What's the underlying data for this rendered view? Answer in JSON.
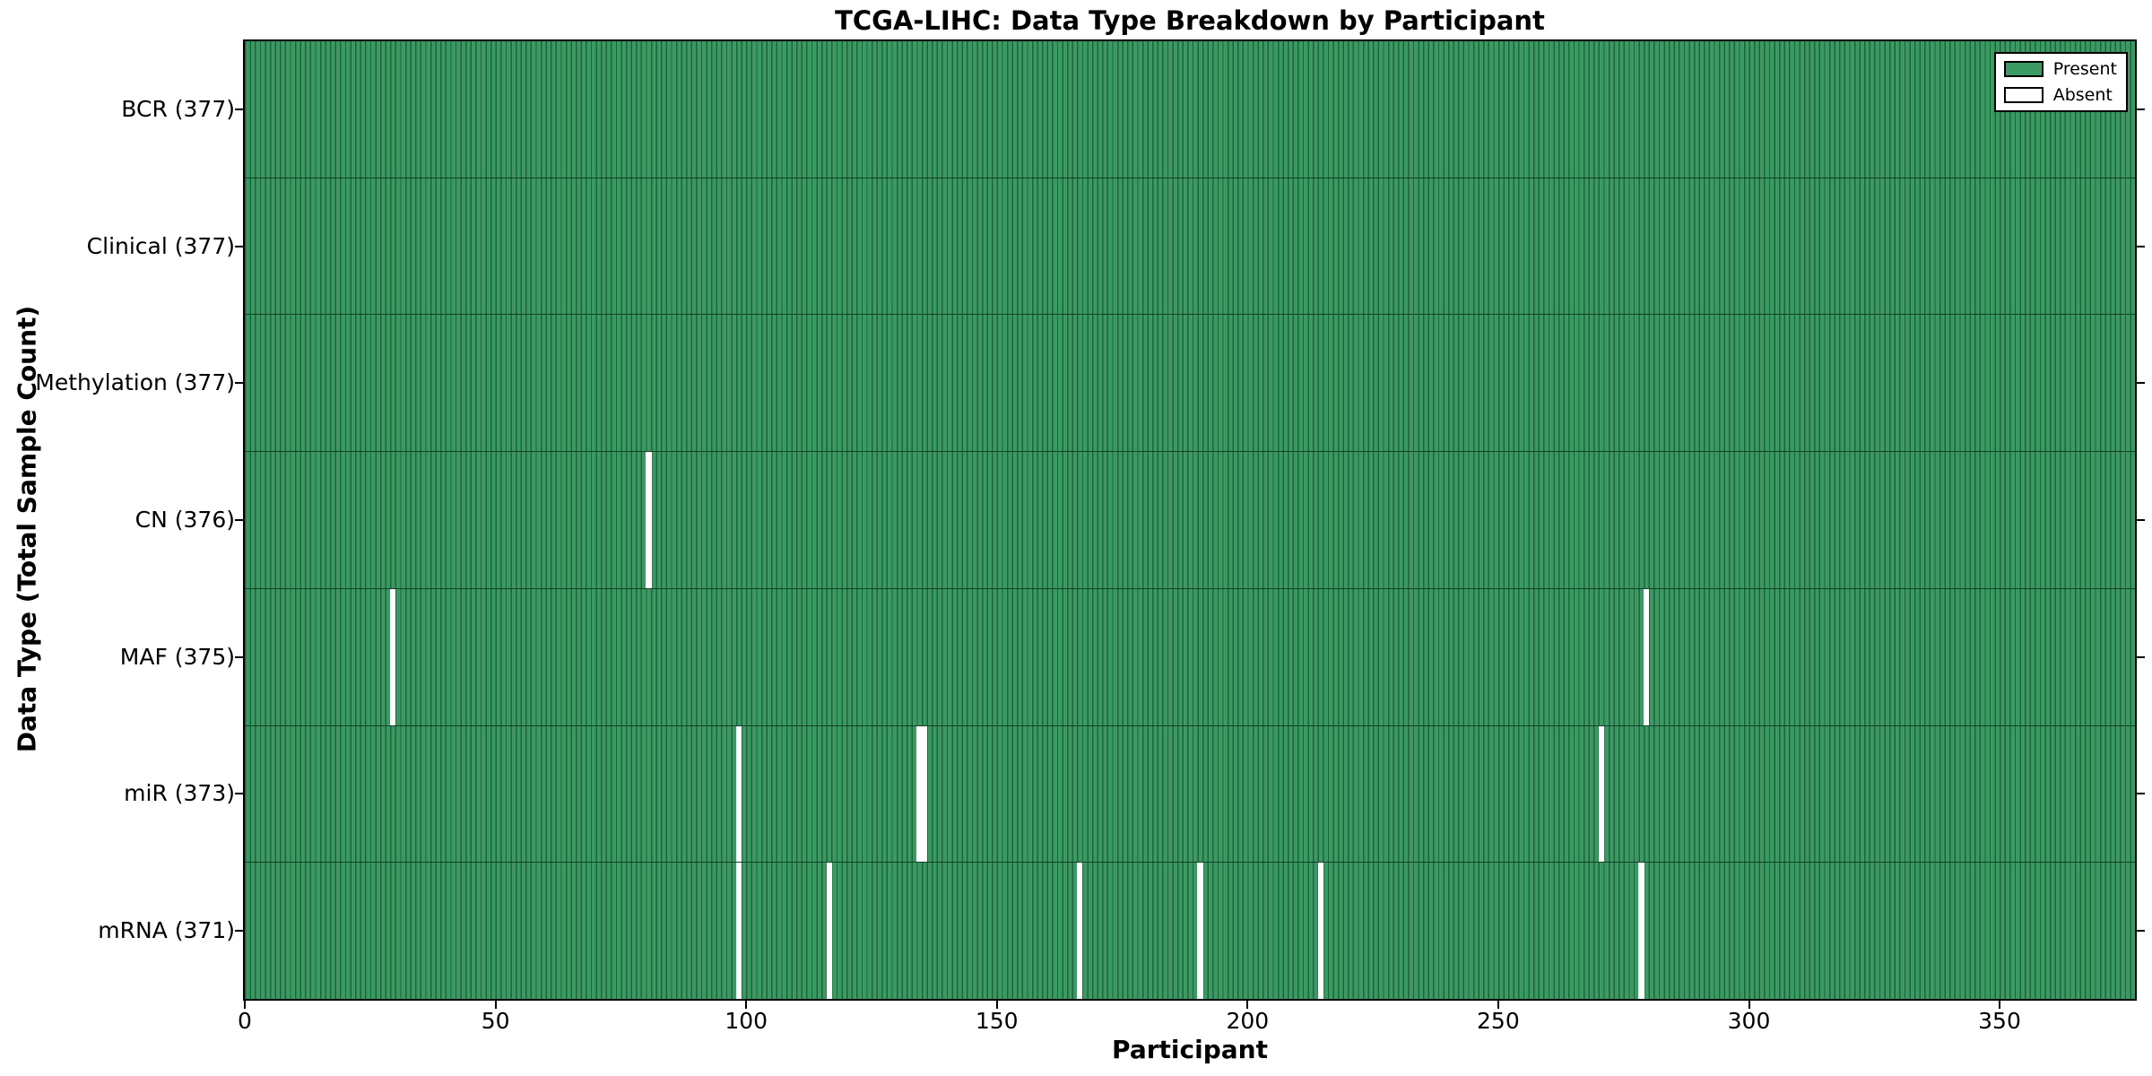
{
  "chart_data": {
    "type": "heatmap",
    "title": "TCGA-LIHC: Data Type Breakdown by Participant",
    "xlabel": "Participant",
    "ylabel": "Data Type (Total Sample Count)",
    "xlim": [
      0,
      377
    ],
    "x_ticks": [
      0,
      50,
      100,
      150,
      200,
      250,
      300,
      350
    ],
    "n_participants": 377,
    "grid": false,
    "legend": {
      "position": "upper right",
      "entries": [
        {
          "label": "Present",
          "color": "#3a9a62"
        },
        {
          "label": "Absent",
          "color": "#ffffff"
        }
      ]
    },
    "colors": {
      "present_fill": "#3a9a62",
      "bar_edge": "#20643f",
      "row_separator": "#14402a",
      "absent_fill": "#ffffff",
      "axis": "#000000"
    },
    "rows": [
      {
        "label": "BCR (377)",
        "data_type": "BCR",
        "present_count": 377,
        "absent_count": 0,
        "absent_participants": []
      },
      {
        "label": "Clinical (377)",
        "data_type": "Clinical",
        "present_count": 377,
        "absent_count": 0,
        "absent_participants": []
      },
      {
        "label": "Methylation (377)",
        "data_type": "Methylation",
        "present_count": 377,
        "absent_count": 0,
        "absent_participants": []
      },
      {
        "label": "CN (376)",
        "data_type": "CN",
        "present_count": 376,
        "absent_count": 1,
        "absent_participants": [
          80
        ]
      },
      {
        "label": "MAF (375)",
        "data_type": "MAF",
        "present_count": 375,
        "absent_count": 2,
        "absent_participants": [
          29,
          279
        ]
      },
      {
        "label": "miR (373)",
        "data_type": "miR",
        "present_count": 373,
        "absent_count": 4,
        "absent_participants": [
          98,
          134,
          135,
          270
        ]
      },
      {
        "label": "mRNA (371)",
        "data_type": "mRNA",
        "present_count": 371,
        "absent_count": 6,
        "absent_participants": [
          98,
          116,
          166,
          190,
          214,
          278
        ]
      }
    ]
  }
}
